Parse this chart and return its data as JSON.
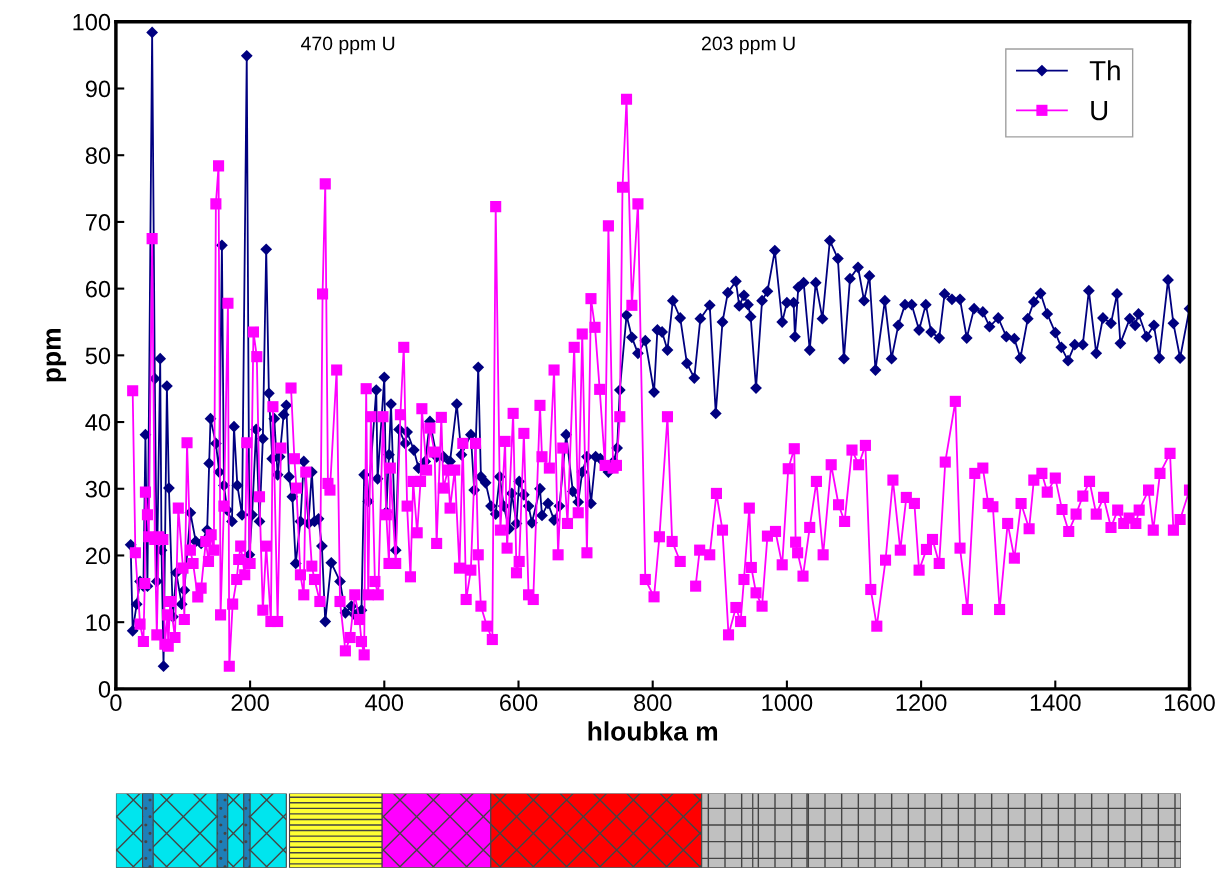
{
  "chart_data": {
    "type": "line",
    "xlabel": "hloubka m",
    "ylabel": "ppm",
    "xlim": [
      0,
      1600
    ],
    "xticks": [
      0,
      200,
      400,
      600,
      800,
      1000,
      1200,
      1400,
      1600
    ],
    "ylim": [
      0,
      100
    ],
    "yticks": [
      0,
      10,
      20,
      30,
      40,
      50,
      60,
      70,
      80,
      90,
      100
    ],
    "grid": false,
    "legend": "top right",
    "line_style": "solid",
    "annotations": [
      "470 ppm U",
      "203 ppm U"
    ],
    "series": [
      {
        "name": "Th",
        "color": "#000080",
        "marker": "diamond",
        "x": [
          22,
          25,
          31,
          36,
          41,
          44,
          47,
          54,
          58,
          61,
          66,
          68,
          71,
          76,
          79,
          85,
          90,
          98,
          102,
          111,
          119,
          127,
          136,
          139,
          141,
          149,
          154,
          158,
          161,
          166,
          173,
          176,
          181,
          188,
          195,
          199,
          203,
          209,
          214,
          219,
          224,
          228,
          233,
          236,
          241,
          244,
          250,
          254,
          258,
          263,
          268,
          275,
          280,
          287,
          292,
          296,
          302,
          307,
          312,
          321,
          334,
          342,
          351,
          356,
          361,
          366,
          370,
          376,
          388,
          390,
          400,
          403,
          407,
          410,
          417,
          422,
          431,
          434,
          444,
          451,
          461,
          468,
          478,
          488,
          498,
          508,
          515,
          529,
          534,
          540,
          544,
          551,
          559,
          566,
          572,
          578,
          586,
          590,
          597,
          601,
          608,
          615,
          620,
          632,
          635,
          644,
          653,
          661,
          671,
          681,
          689,
          695,
          702,
          708,
          715,
          722,
          734,
          742,
          747,
          751,
          761,
          769,
          778,
          789,
          802,
          807,
          814,
          822,
          830,
          841,
          851,
          862,
          871,
          885,
          894,
          904,
          912,
          924,
          929,
          936,
          942,
          946,
          954,
          963,
          971,
          982,
          993,
          1000,
          1010,
          1012,
          1017,
          1025,
          1034,
          1043,
          1053,
          1064,
          1076,
          1085,
          1094,
          1106,
          1115,
          1123,
          1132,
          1146,
          1156,
          1166,
          1176,
          1186,
          1197,
          1207,
          1215,
          1227,
          1235,
          1246,
          1258,
          1268,
          1279,
          1292,
          1302,
          1315,
          1327,
          1339,
          1348,
          1359,
          1368,
          1378,
          1388,
          1400,
          1409,
          1419,
          1429,
          1441,
          1450,
          1461,
          1471,
          1483,
          1492,
          1497,
          1511,
          1519,
          1524,
          1536,
          1547,
          1555,
          1568,
          1576,
          1586,
          1600
        ],
        "values": [
          21.6,
          8.7,
          12.7,
          16.1,
          15.4,
          38.1,
          15.4,
          98.4,
          46.5,
          16.1,
          49.5,
          20.8,
          3.4,
          45.4,
          30.1,
          10.8,
          17.4,
          12.7,
          14.8,
          26.4,
          22.1,
          21.8,
          23.8,
          33.8,
          40.5,
          36.8,
          32.5,
          66.5,
          30.5,
          26.8,
          25.1,
          39.3,
          30.5,
          26.1,
          94.9,
          20.1,
          26.1,
          38.9,
          25.1,
          37.5,
          65.9,
          44.3,
          34.5,
          40.5,
          32.1,
          34.8,
          41.1,
          42.5,
          31.8,
          28.8,
          18.8,
          25.1,
          34.1,
          24.8,
          32.5,
          25.1,
          25.5,
          21.4,
          10.1,
          18.9,
          16.1,
          11.4,
          12.4,
          11.1,
          11.4,
          11.8,
          32.1,
          28.1,
          44.8,
          31.5,
          46.7,
          26.5,
          35.1,
          42.7,
          20.8,
          38.9,
          36.8,
          38.5,
          35.8,
          33.1,
          34.1,
          40.1,
          34.8,
          34.8,
          34.1,
          42.7,
          35.1,
          38.1,
          29.8,
          48.2,
          31.8,
          30.9,
          27.4,
          26.2,
          31.8,
          27.4,
          24.0,
          29.3,
          24.8,
          31.1,
          29.1,
          27.4,
          24.9,
          30.0,
          26.0,
          27.8,
          25.3,
          27.4,
          38.1,
          29.6,
          28.0,
          32.5,
          34.8,
          27.8,
          34.8,
          34.5,
          32.5,
          34.1,
          36.1,
          44.8,
          56.0,
          52.7,
          50.3,
          52.2,
          44.5,
          53.8,
          53.5,
          50.8,
          58.2,
          55.6,
          48.8,
          46.6,
          55.5,
          57.5,
          41.3,
          55.0,
          59.4,
          61.1,
          57.4,
          59.0,
          57.6,
          55.8,
          45.1,
          58.2,
          59.6,
          65.7,
          55.0,
          57.9,
          57.9,
          52.8,
          60.2,
          60.9,
          50.8,
          60.9,
          55.5,
          67.2,
          64.5,
          49.5,
          61.5,
          63.2,
          58.2,
          61.9,
          47.8,
          58.2,
          49.5,
          54.5,
          57.6,
          57.6,
          53.8,
          57.6,
          53.5,
          52.6,
          59.2,
          58.4,
          58.4,
          52.6,
          57.0,
          56.5,
          54.3,
          55.6,
          52.8,
          52.5,
          49.6,
          55.5,
          58.0,
          59.3,
          56.2,
          53.4,
          51.2,
          49.2,
          51.6,
          51.6,
          59.7,
          50.3,
          55.6,
          54.8,
          59.2,
          51.8,
          55.5,
          54.5,
          56.2,
          52.8,
          54.5,
          49.6,
          61.3,
          54.8,
          49.6,
          57.0
        ]
      },
      {
        "name": "U",
        "color": "#ff00ff",
        "marker": "square",
        "x": [
          25,
          29,
          36,
          41,
          43,
          44,
          47,
          49,
          54,
          58,
          61,
          64,
          70,
          73,
          77,
          78,
          81,
          88,
          93,
          100,
          102,
          106,
          111,
          115,
          122,
          127,
          134,
          138,
          142,
          146,
          149,
          153,
          156,
          161,
          167,
          169,
          174,
          180,
          183,
          186,
          192,
          195,
          200,
          205,
          210,
          214,
          219,
          224,
          231,
          234,
          241,
          246,
          254,
          261,
          266,
          269,
          275,
          280,
          283,
          292,
          296,
          304,
          308,
          312,
          316,
          319,
          329,
          334,
          342,
          349,
          356,
          363,
          366,
          370,
          373,
          376,
          380,
          386,
          391,
          398,
          403,
          407,
          409,
          417,
          424,
          429,
          434,
          439,
          443,
          449,
          454,
          456,
          463,
          468,
          475,
          478,
          485,
          488,
          495,
          498,
          505,
          512,
          517,
          522,
          529,
          536,
          540,
          544,
          553,
          561,
          566,
          573,
          580,
          583,
          592,
          597,
          601,
          608,
          615,
          622,
          632,
          635,
          646,
          653,
          659,
          666,
          673,
          683,
          689,
          695,
          702,
          708,
          714,
          721,
          729,
          734,
          741,
          746,
          751,
          755,
          761,
          769,
          778,
          789,
          802,
          810,
          822,
          829,
          841,
          851,
          864,
          870,
          885,
          895,
          904,
          913,
          924,
          931,
          936,
          944,
          947,
          954,
          963,
          971,
          983,
          993,
          1002,
          1011,
          1013,
          1016,
          1024,
          1034,
          1044,
          1054,
          1066,
          1077,
          1086,
          1097,
          1107,
          1117,
          1125,
          1134,
          1147,
          1158,
          1169,
          1178,
          1190,
          1197,
          1208,
          1217,
          1227,
          1236,
          1251,
          1258,
          1269,
          1280,
          1292,
          1300,
          1307,
          1317,
          1329,
          1339,
          1349,
          1361,
          1368,
          1380,
          1388,
          1400,
          1410,
          1420,
          1431,
          1441,
          1451,
          1461,
          1472,
          1483,
          1493,
          1502,
          1510,
          1520,
          1525,
          1539,
          1546,
          1556,
          1571,
          1576,
          1586,
          1600
        ],
        "values": [
          44.7,
          20.4,
          9.7,
          7.1,
          15.8,
          29.5,
          26.1,
          22.8,
          67.5,
          22.4,
          8.1,
          22.8,
          22.4,
          6.7,
          11.1,
          6.4,
          13.1,
          7.7,
          27.1,
          18.1,
          10.4,
          36.9,
          20.8,
          18.8,
          13.8,
          15.1,
          22.1,
          19.1,
          23.1,
          20.8,
          72.7,
          78.4,
          11.1,
          27.4,
          57.8,
          3.4,
          12.7,
          16.4,
          19.4,
          21.4,
          17.1,
          36.9,
          18.8,
          53.5,
          49.8,
          28.8,
          11.8,
          21.4,
          10.1,
          42.3,
          10.1,
          36.1,
          null,
          45.1,
          34.5,
          30.1,
          17.1,
          14.1,
          32.5,
          18.4,
          16.4,
          13.1,
          59.2,
          75.7,
          30.8,
          29.8,
          47.8,
          13.1,
          5.7,
          7.7,
          14.1,
          10.4,
          7.1,
          5.1,
          45.0,
          14.1,
          40.8,
          16.1,
          14.1,
          40.8,
          26.1,
          18.8,
          33.1,
          18.8,
          41.1,
          51.2,
          27.4,
          16.8,
          31.1,
          23.4,
          31.1,
          42.0,
          32.8,
          39.1,
          35.5,
          21.8,
          40.7,
          30.1,
          32.8,
          27.1,
          32.8,
          18.1,
          36.8,
          13.4,
          17.8,
          36.8,
          20.1,
          12.4,
          9.4,
          7.4,
          72.3,
          23.8,
          37.1,
          21.1,
          41.3,
          17.4,
          19.1,
          38.3,
          14.1,
          13.4,
          42.5,
          34.8,
          33.1,
          47.8,
          20.1,
          36.1,
          24.8,
          51.2,
          26.4,
          53.2,
          20.4,
          58.5,
          54.2,
          44.9,
          33.5,
          69.4,
          33.1,
          33.5,
          40.8,
          75.2,
          88.4,
          57.5,
          72.7,
          16.4,
          13.8,
          22.8,
          40.8,
          22.1,
          19.1,
          null,
          15.4,
          20.8,
          20.1,
          29.3,
          23.8,
          8.1,
          12.2,
          10.1,
          16.4,
          27.1,
          18.2,
          14.4,
          12.4,
          22.9,
          23.6,
          18.6,
          33.0,
          36.0,
          22.0,
          20.4,
          16.9,
          24.2,
          31.1,
          20.1,
          33.6,
          27.6,
          25.1,
          35.8,
          33.6,
          36.5,
          14.9,
          9.4,
          19.3,
          31.3,
          20.8,
          28.7,
          27.8,
          17.8,
          20.9,
          22.4,
          18.8,
          34.0,
          43.1,
          21.1,
          11.9,
          32.3,
          33.1,
          27.8,
          27.3,
          11.9,
          24.8,
          19.6,
          27.8,
          24.0,
          31.3,
          32.3,
          29.5,
          31.6,
          26.9,
          23.6,
          26.2,
          28.9,
          31.1,
          26.2,
          28.7,
          24.2,
          26.8,
          24.8,
          25.6,
          24.8,
          26.8,
          29.8,
          23.8,
          32.3,
          35.3,
          23.8,
          25.4,
          29.8
        ]
      }
    ]
  }
}
